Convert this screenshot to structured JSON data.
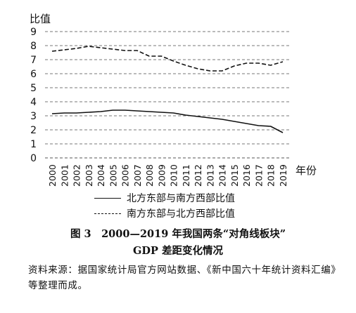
{
  "chart_data": {
    "type": "line",
    "ylabel": "比值",
    "xlabel": "年份",
    "ylim": [
      0,
      9
    ],
    "yticks": [
      0,
      1,
      2,
      3,
      4,
      5,
      6,
      7,
      8,
      9
    ],
    "x": [
      "2000",
      "2001",
      "2002",
      "2003",
      "2004",
      "2005",
      "2006",
      "2007",
      "2008",
      "2009",
      "2010",
      "2011",
      "2012",
      "2013",
      "2014",
      "2015",
      "2016",
      "2017",
      "2018",
      "2019"
    ],
    "grid": "horizontal-dashed",
    "legend": "bottom",
    "series": [
      {
        "name": "北方东部与南方西部比值",
        "style": "solid",
        "values": [
          3.15,
          3.2,
          3.2,
          3.25,
          3.3,
          3.4,
          3.4,
          3.35,
          3.3,
          3.25,
          3.2,
          3.05,
          2.95,
          2.85,
          2.75,
          2.6,
          2.45,
          2.3,
          2.25,
          1.8
        ]
      },
      {
        "name": "南方东部与北方西部比值",
        "style": "dashed",
        "values": [
          7.6,
          7.7,
          7.8,
          7.95,
          7.85,
          7.75,
          7.65,
          7.65,
          7.25,
          7.25,
          6.9,
          6.6,
          6.35,
          6.2,
          6.2,
          6.55,
          6.75,
          6.75,
          6.6,
          6.85
        ]
      }
    ]
  },
  "caption": {
    "title_line1": "图 3　2000—2019 年我国两条“对角线板块”",
    "title_line2": "GDP 差距变化情况",
    "source": "资料来源：据国家统计局官方网站数据、《新中国六十年统计资料汇编》等整理而成。"
  }
}
